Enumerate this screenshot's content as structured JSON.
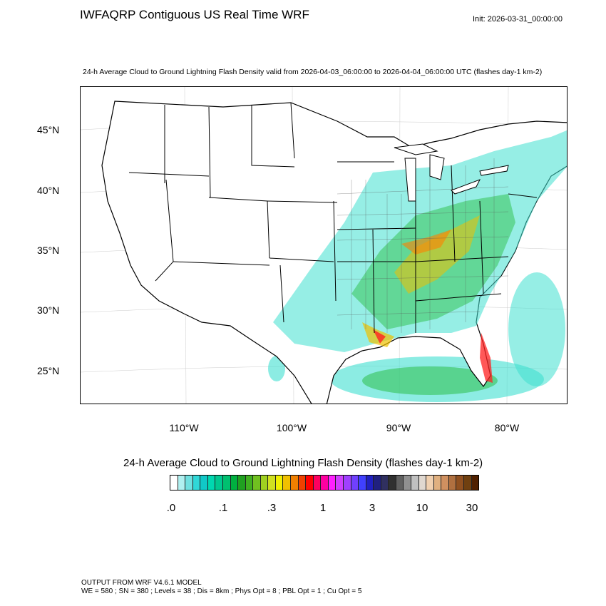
{
  "header": {
    "title": "IWFAQRP Contiguous US Real Time WRF",
    "init": "Init: 2026-03-31_00:00:00",
    "subtitle": "24-h Average Cloud to Ground Lightning Flash Density valid from 2026-04-03_06:00:00 to 2026-04-04_06:00:00 UTC   (flashes day-1 km-2)"
  },
  "map": {
    "lat_labels": [
      "45°N",
      "40°N",
      "35°N",
      "30°N",
      "25°N"
    ],
    "lon_labels": [
      "110°W",
      "100°W",
      "90°W",
      "80°W"
    ],
    "colors": {
      "land": "#ffffff",
      "border": "#000000",
      "county": "#555555",
      "low": "#40e0d0",
      "mid": "#2dbf4a",
      "high": "#f0c000",
      "peak": "#ff2020"
    }
  },
  "colorbar": {
    "title": "24-h Average Cloud to Ground Lightning Flash Density  (flashes day-1 km-2)",
    "tick_labels": [
      ".0",
      ".1",
      ".3",
      "1",
      "3",
      "10",
      "30"
    ],
    "colors": [
      "#ffffff",
      "#b0f0f0",
      "#70e0e0",
      "#30d8d8",
      "#10c8c8",
      "#00d8b0",
      "#00c890",
      "#00c070",
      "#00b040",
      "#20a020",
      "#40b020",
      "#70c020",
      "#a0d020",
      "#d0e020",
      "#f0f000",
      "#f0c000",
      "#f08000",
      "#f04000",
      "#ff0000",
      "#ff0060",
      "#ff00a0",
      "#ff20ff",
      "#d040ff",
      "#a040ff",
      "#7040ff",
      "#4040ff",
      "#2020c0",
      "#202080",
      "#303060",
      "#303030",
      "#606060",
      "#909090",
      "#c0c0c0",
      "#e0d8d0",
      "#f0d0b0",
      "#e0b080",
      "#d09060",
      "#b07040",
      "#905020",
      "#704010",
      "#502000"
    ]
  },
  "footer": {
    "line1": "OUTPUT FROM WRF V4.6.1 MODEL",
    "line2": "WE = 580 ; SN = 380 ; Levels = 38 ; Dis = 8km ; Phys Opt = 8 ; PBL Opt = 1 ; Cu Opt = 5"
  }
}
